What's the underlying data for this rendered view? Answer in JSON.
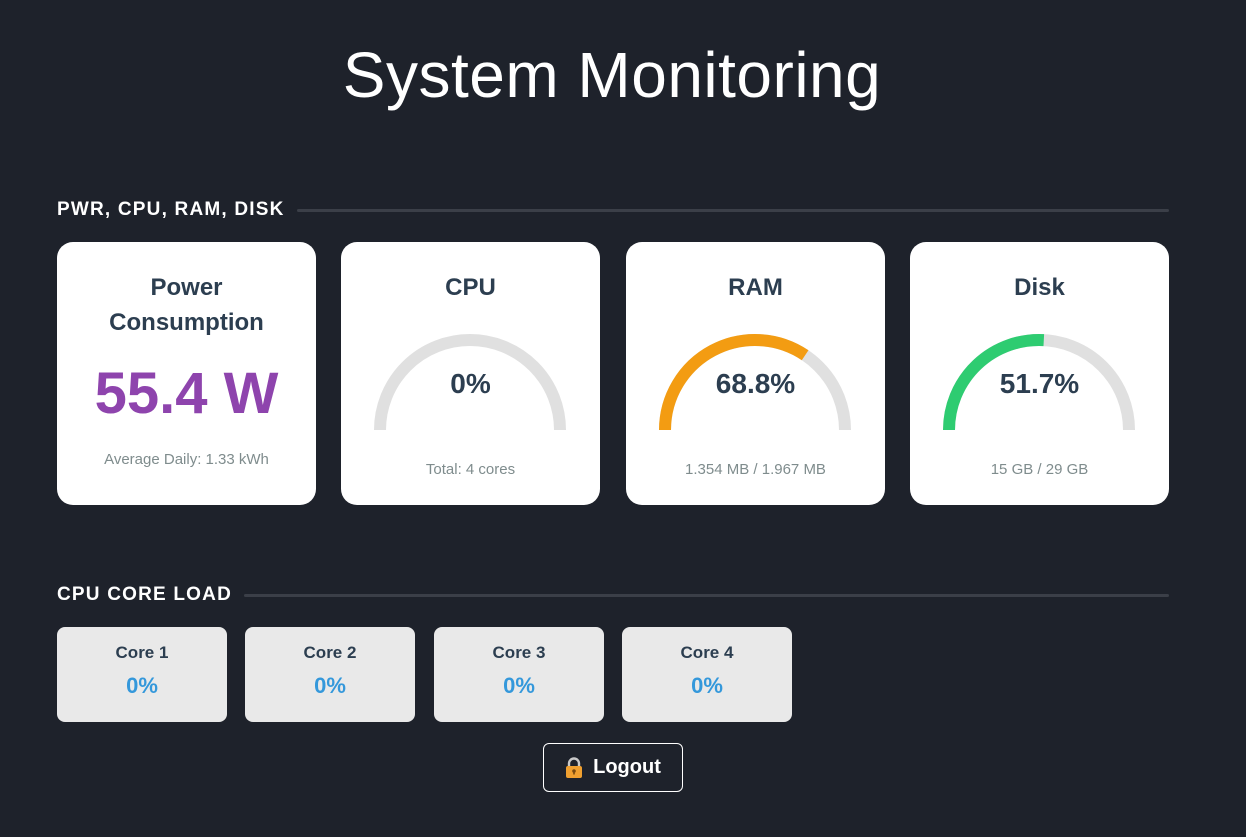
{
  "title": "System Monitoring",
  "sections": {
    "resources": "PWR, CPU, RAM, DISK",
    "cores": "CPU CORE LOAD"
  },
  "power": {
    "title_line1": "Power",
    "title_line2": "Consumption",
    "value": "55.4 W",
    "average": "Average Daily: 1.33 kWh",
    "color": "#8e44ad"
  },
  "gauges": [
    {
      "title": "CPU",
      "percent": 0,
      "label": "0%",
      "detail": "Total: 4 cores",
      "color": "#e0e0e0"
    },
    {
      "title": "RAM",
      "percent": 68.8,
      "label": "68.8%",
      "detail": "1.354 MB / 1.967 MB",
      "color": "#f39c12"
    },
    {
      "title": "Disk",
      "percent": 51.7,
      "label": "51.7%",
      "detail": "15 GB / 29 GB",
      "color": "#2ecc71"
    }
  ],
  "cores": [
    {
      "name": "Core 1",
      "value": "0%"
    },
    {
      "name": "Core 2",
      "value": "0%"
    },
    {
      "name": "Core 3",
      "value": "0%"
    },
    {
      "name": "Core 4",
      "value": "0%"
    }
  ],
  "logout": {
    "label": "Logout",
    "icon": "lock-icon"
  }
}
